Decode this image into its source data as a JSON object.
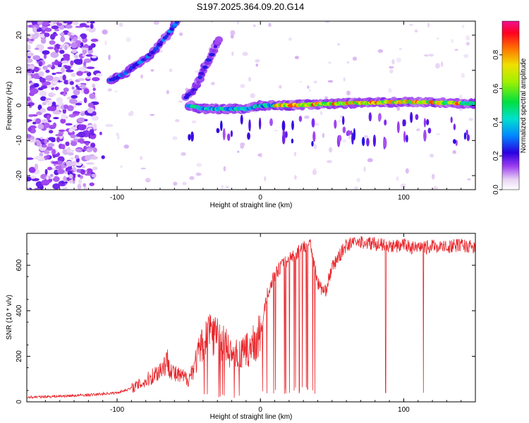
{
  "title": "S197.2025.364.09.20.G14",
  "colors": {
    "snr_line": "#e8262b",
    "frame": "#000000"
  },
  "chart_data": [
    {
      "type": "heatmap",
      "title": "S197.2025.364.09.20.G14",
      "xlabel": "Height of straight line (km)",
      "ylabel": "Frequency (Hz)",
      "xlim": [
        -163,
        150
      ],
      "ylim": [
        -24,
        24
      ],
      "xticks": [
        -100,
        0,
        100
      ],
      "xtick_labels": [
        "-100",
        "0",
        "100"
      ],
      "yticks": [
        -20,
        -10,
        0,
        10,
        20
      ],
      "ytick_labels": [
        "-20",
        "-10",
        "0",
        "10",
        "20"
      ],
      "colorbar": {
        "label": "Normalized spectral amplitude",
        "range": [
          0,
          1
        ],
        "ticks": [
          0.0,
          0.2,
          0.4,
          0.6,
          0.8
        ],
        "tick_labels": [
          "0.0",
          "0.2",
          "0.4",
          "0.6",
          "0.8"
        ],
        "colormap": "rainbow (white-purple-blue-cyan-green-yellow-red-magenta)"
      },
      "features": [
        {
          "name": "noise",
          "x_range": [
            -163,
            -115
          ],
          "freq_range": [
            -24,
            24
          ],
          "amplitude": 0.15
        },
        {
          "name": "upward ridge",
          "points": [
            [
              -105,
              7
            ],
            [
              -95,
              9
            ],
            [
              -85,
              12
            ],
            [
              -75,
              15
            ],
            [
              -65,
              20
            ],
            [
              -58,
              24
            ]
          ],
          "amplitude": 0.35
        },
        {
          "name": "secondary ridge",
          "points": [
            [
              -53,
              2
            ],
            [
              -45,
              5
            ],
            [
              -40,
              10
            ],
            [
              -32,
              16
            ],
            [
              -28,
              20
            ]
          ],
          "amplitude": 0.25
        },
        {
          "name": "main line",
          "points": [
            [
              -50,
              0
            ],
            [
              -40,
              -1
            ],
            [
              -25,
              -1
            ],
            [
              -10,
              -1
            ],
            [
              0,
              0
            ],
            [
              20,
              0
            ],
            [
              50,
              0.5
            ],
            [
              100,
              1
            ],
            [
              150,
              0.5
            ]
          ],
          "amplitude": 0.9
        }
      ]
    },
    {
      "type": "line",
      "xlabel": "Height of straight line (km)",
      "ylabel": "SNR (10 * v/v)",
      "xlim": [
        -163,
        150
      ],
      "ylim": [
        0,
        740
      ],
      "xticks": [
        -100,
        0,
        100
      ],
      "xtick_labels": [
        "-100",
        "0",
        "100"
      ],
      "yticks": [
        0,
        200,
        400,
        600
      ],
      "ytick_labels": [
        "0",
        "200",
        "400",
        "600"
      ],
      "series": [
        {
          "name": "SNR",
          "x": [
            -163,
            -140,
            -120,
            -100,
            -90,
            -80,
            -70,
            -65,
            -60,
            -50,
            -40,
            -35,
            -30,
            -25,
            -20,
            -15,
            -10,
            -5,
            0,
            5,
            10,
            15,
            20,
            25,
            30,
            35,
            40,
            45,
            50,
            55,
            60,
            70,
            80,
            90,
            100,
            110,
            120,
            130,
            140,
            150
          ],
          "values": [
            20,
            25,
            30,
            40,
            60,
            90,
            140,
            180,
            120,
            100,
            260,
            330,
            280,
            250,
            210,
            200,
            220,
            250,
            300,
            480,
            560,
            600,
            630,
            650,
            680,
            700,
            520,
            480,
            590,
            640,
            690,
            700,
            695,
            680,
            690,
            670,
            685,
            680,
            690,
            675
          ]
        }
      ]
    }
  ]
}
